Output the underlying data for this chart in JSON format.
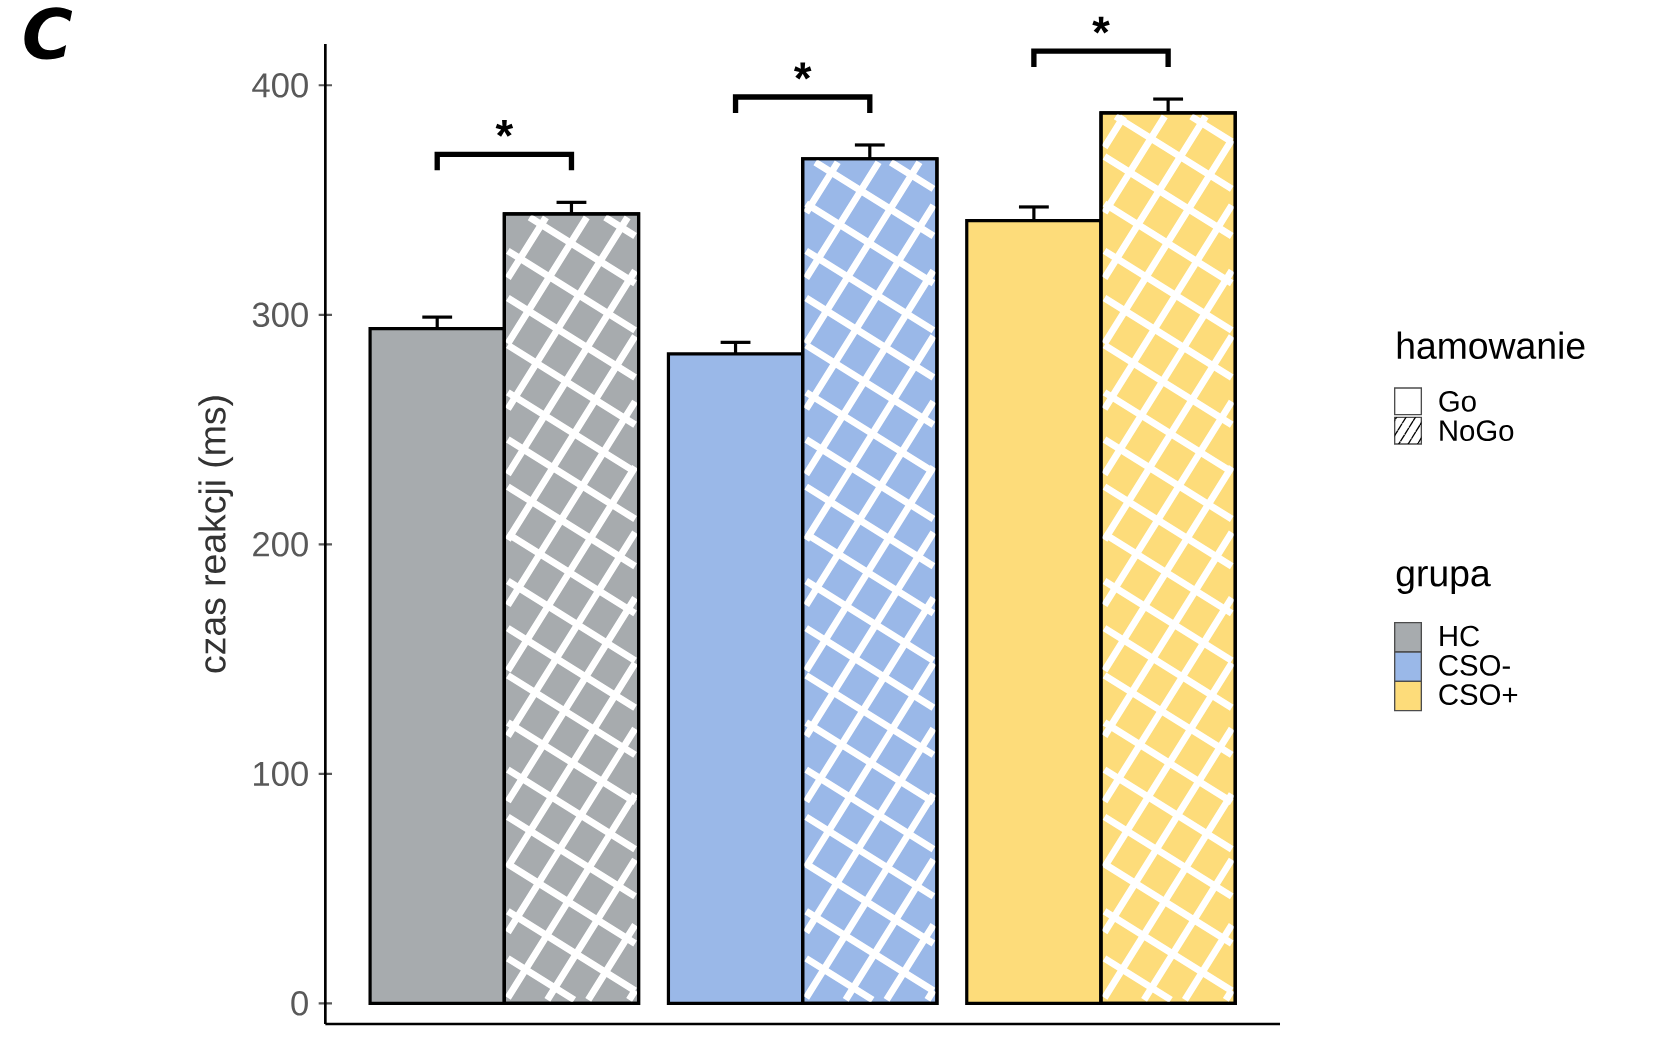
{
  "chart_data": {
    "type": "bar",
    "ylabel": "czas reakcji (ms)",
    "legend_title": "hamowanie",
    "categories": [
      null,
      null,
      null
    ],
    "series": [
      {
        "name": "Go",
        "colors": [
          "#a7abae",
          "#9ab8e8",
          "#fddc7a"
        ],
        "values": [
          294,
          283,
          341
        ],
        "errors": [
          [
            294,
            299
          ],
          [
            283,
            288
          ],
          [
            341,
            347
          ]
        ]
      },
      {
        "name": "NoGo",
        "colors": [
          "#a7abae",
          "#9ab8e8",
          "#fddc7a"
        ],
        "values": [
          344,
          368,
          388
        ],
        "errors": [
          [
            344,
            349
          ],
          [
            368,
            374
          ],
          [
            388,
            394
          ]
        ]
      }
    ],
    "ylim": [
      -9,
      418
    ],
    "yticks": [
      0,
      100,
      200,
      300,
      400
    ],
    "grid": false,
    "tick_labels": "y",
    "legend": "right",
    "annotations": [
      "C",
      "grupa",
      "HC",
      "CSO-",
      "CSO+",
      "*",
      "*",
      "*"
    ]
  }
}
